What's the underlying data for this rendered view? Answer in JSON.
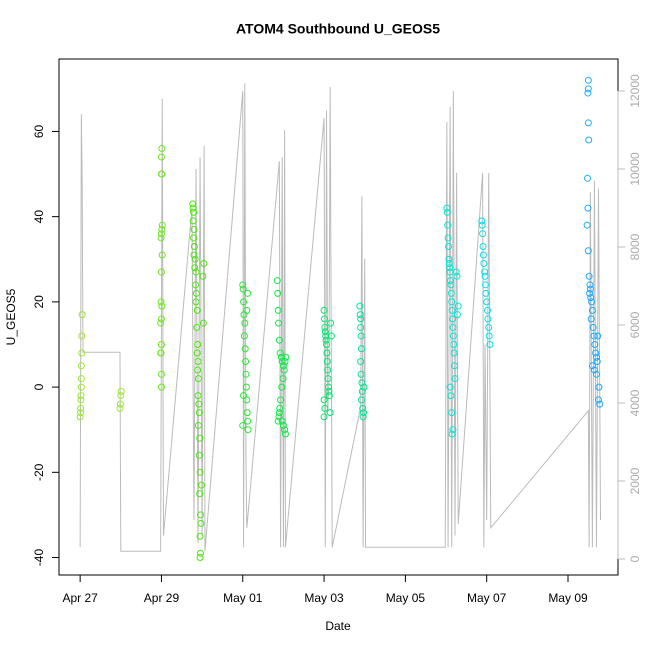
{
  "chart_data": {
    "type": "scatter",
    "title": "ATOM4 Southbound U_GEOS5",
    "x_label": "Date",
    "y_label": "U_GEOS5",
    "xlim": [
      -0.52,
      13.23
    ],
    "ylim": [
      -44.1,
      77
    ],
    "y2lim": [
      -410,
      12820
    ],
    "xticks": [
      {
        "value": 0,
        "label": "Apr 27"
      },
      {
        "value": 2,
        "label": "Apr 29"
      },
      {
        "value": 4,
        "label": "May 01"
      },
      {
        "value": 6,
        "label": "May 03"
      },
      {
        "value": 8,
        "label": "May 05"
      },
      {
        "value": 10,
        "label": "May 07"
      },
      {
        "value": 12,
        "label": "May 09"
      }
    ],
    "yticks": [
      -40,
      -20,
      0,
      20,
      40,
      60
    ],
    "y2ticks": [
      0,
      2000,
      4000,
      6000,
      8000,
      10000,
      12000
    ],
    "y2color": "#bbbbbb",
    "series": [
      {
        "color": "#9be830",
        "x": [
          0.0,
          0.01,
          0.01,
          0.02,
          0.02,
          0.03,
          0.03,
          0.03,
          0.04,
          0.04,
          0.05,
          0.98,
          0.99,
          1.0,
          1.01
        ],
        "values": [
          -7,
          -6,
          -5,
          -3,
          -2,
          0,
          2,
          5,
          8,
          12,
          17,
          -5,
          -4,
          -2,
          -1
        ]
      },
      {
        "color": "#6ee81c",
        "x": [
          2.0,
          2.0,
          1.98,
          1.99,
          2.0,
          1.98,
          2.0,
          1.99,
          2.01,
          2.0,
          2.02,
          1.99,
          2.0,
          2.01,
          2.02,
          2.0,
          2.01,
          2.0,
          2.01
        ],
        "values": [
          0,
          3,
          8,
          8,
          10,
          15,
          16,
          20,
          19,
          27,
          31,
          35,
          36,
          37,
          38,
          50,
          50,
          54,
          56
        ]
      },
      {
        "color": "#4ae80a",
        "x": [
          2.77,
          2.78,
          2.79,
          2.78,
          2.8,
          2.79,
          2.81,
          2.8,
          2.83,
          2.82,
          2.85,
          2.84,
          2.86,
          2.85,
          2.88,
          2.87,
          2.89,
          2.88,
          2.9,
          2.89,
          2.91,
          2.9,
          2.92,
          2.93,
          2.91,
          2.94,
          2.93,
          2.95,
          2.94,
          2.96,
          2.95,
          2.95,
          2.96,
          2.97,
          2.98,
          3.02,
          3.04,
          3.03
        ],
        "values": [
          43,
          42,
          41,
          39,
          37,
          35,
          33,
          31,
          30,
          28,
          27,
          24,
          22,
          20,
          18,
          14,
          10,
          8,
          6,
          4,
          2,
          -2,
          -4,
          -6,
          -9,
          -12,
          -16,
          -20,
          -25,
          -30,
          -35,
          -40,
          -39,
          -32,
          -23,
          26,
          29,
          15
        ]
      },
      {
        "color": "#2ae838",
        "x": [
          4.0,
          4.01,
          4.02,
          4.03,
          4.05,
          4.04,
          4.06,
          4.07,
          4.08,
          4.09,
          4.1,
          4.11,
          4.12,
          4.13,
          4.0,
          4.02,
          4.1,
          4.12
        ],
        "values": [
          24,
          23,
          20,
          17,
          15,
          12,
          9,
          6,
          3,
          0,
          -3,
          -6,
          -8,
          -10,
          -9,
          -2,
          18,
          22
        ]
      },
      {
        "color": "#10e846",
        "x": [
          4.85,
          4.86,
          4.87,
          4.88,
          4.9,
          4.92,
          4.95,
          4.97,
          5.0,
          5.02,
          4.99,
          4.96,
          4.93,
          4.91,
          4.89,
          4.97,
          5.0,
          5.03,
          5.05,
          4.87,
          4.9,
          5.04,
          5.06
        ],
        "values": [
          25,
          22,
          18,
          15,
          11,
          8,
          7,
          6,
          5,
          4,
          2,
          0,
          -3,
          -5,
          -7,
          -8,
          -9,
          -10,
          -11,
          -8,
          -6,
          6,
          7
        ]
      },
      {
        "color": "#00e870",
        "x": [
          6.0,
          6.01,
          6.02,
          6.03,
          6.04,
          6.05,
          6.06,
          6.07,
          6.08,
          6.09,
          6.1,
          6.11,
          6.12,
          6.13,
          6.0,
          6.02,
          6.0,
          6.15,
          6.16,
          6.18
        ],
        "values": [
          18,
          16,
          14,
          13,
          12,
          11,
          10,
          8,
          6,
          4,
          2,
          0,
          -1,
          -2,
          -3,
          -5,
          -7,
          -6,
          15,
          12
        ]
      },
      {
        "color": "#00e894",
        "x": [
          6.88,
          6.89,
          6.9,
          6.91,
          6.92,
          6.9,
          6.91,
          6.93,
          6.94,
          6.92,
          6.95,
          6.96,
          6.97,
          6.98,
          6.9
        ],
        "values": [
          19,
          17,
          14,
          12,
          9,
          6,
          3,
          1,
          -1,
          -3,
          -5,
          -7,
          -6,
          0,
          16
        ]
      },
      {
        "color": "#00e8d8",
        "x": [
          9.02,
          9.03,
          9.04,
          9.05,
          9.06,
          9.07,
          9.08,
          9.09,
          9.1,
          9.11,
          9.12,
          9.13,
          9.14,
          9.15,
          9.16,
          9.17,
          9.18,
          9.19,
          9.2,
          9.21,
          9.22,
          9.1,
          9.12,
          9.14,
          9.15,
          9.17,
          9.25,
          9.27,
          9.28,
          9.3
        ],
        "values": [
          42,
          41,
          38,
          35,
          33,
          30,
          29,
          28,
          27,
          25,
          24,
          22,
          20,
          18,
          16,
          14,
          12,
          10,
          8,
          5,
          2,
          0,
          -2,
          -6,
          -11,
          -10,
          27,
          26,
          17,
          19
        ]
      },
      {
        "color": "#00e0f0",
        "x": [
          9.88,
          9.89,
          9.9,
          9.91,
          9.92,
          9.93,
          9.95,
          9.96,
          9.97,
          9.98,
          10.0,
          10.02,
          10.03,
          10.05,
          10.06,
          10.08
        ],
        "values": [
          39,
          38,
          36,
          33,
          31,
          29,
          27,
          26,
          24,
          22,
          20,
          18,
          16,
          14,
          12,
          10
        ]
      },
      {
        "color": "#1eaaff",
        "x": [
          12.5,
          12.5,
          12.49,
          12.5,
          12.51,
          12.48,
          12.49,
          12.47,
          12.5,
          12.52,
          12.54,
          12.55,
          12.53,
          12.56,
          12.58,
          12.6,
          12.57,
          12.62,
          12.64,
          12.66,
          12.68,
          12.7,
          12.72,
          12.6,
          12.65,
          12.7,
          12.75,
          12.78,
          12.73,
          12.76
        ],
        "values": [
          72,
          70,
          69,
          62,
          58,
          49,
          42,
          38,
          32,
          26,
          24,
          23,
          22,
          21,
          20,
          18,
          16,
          14,
          12,
          10,
          8,
          7,
          6,
          5,
          4,
          3,
          -3,
          -4,
          12,
          0
        ]
      },
      {
        "type": "line",
        "axis": "y2",
        "color": "#bbbbbb",
        "x": [
          0.0,
          0.03,
          0.05,
          0.07,
          0.98,
          1.0,
          1.98,
          2.02,
          2.05,
          2.75,
          2.8,
          2.85,
          2.9,
          2.95,
          3.0,
          3.05,
          3.07,
          4.0,
          4.02,
          4.05,
          4.08,
          4.1,
          4.9,
          4.93,
          4.97,
          5.0,
          5.03,
          5.05,
          6.0,
          6.03,
          6.06,
          6.09,
          6.12,
          6.15,
          6.2,
          6.9,
          6.93,
          6.96,
          7.0,
          7.02,
          8.98,
          9.02,
          9.05,
          9.1,
          9.14,
          9.18,
          9.22,
          9.26,
          9.3,
          9.9,
          9.93,
          9.96,
          10.0,
          10.05,
          10.1,
          12.5,
          12.52,
          12.55,
          12.6,
          12.65,
          12.7,
          12.75,
          12.8
        ],
        "values": [
          300,
          11400,
          9600,
          5300,
          5300,
          200,
          200,
          11800,
          600,
          9000,
          1000,
          10000,
          400,
          10300,
          600,
          10600,
          200,
          12000,
          300,
          12200,
          2400,
          800,
          10200,
          300,
          10300,
          300,
          11000,
          300,
          11300,
          300,
          11500,
          3800,
          4500,
          12100,
          300,
          3900,
          9300,
          300,
          7700,
          300,
          300,
          11200,
          300,
          11600,
          300,
          12000,
          600,
          9900,
          900,
          9900,
          300,
          5500,
          1000,
          9900,
          800,
          3800,
          300,
          9400,
          300,
          9700,
          300,
          9500,
          1000
        ]
      }
    ]
  }
}
